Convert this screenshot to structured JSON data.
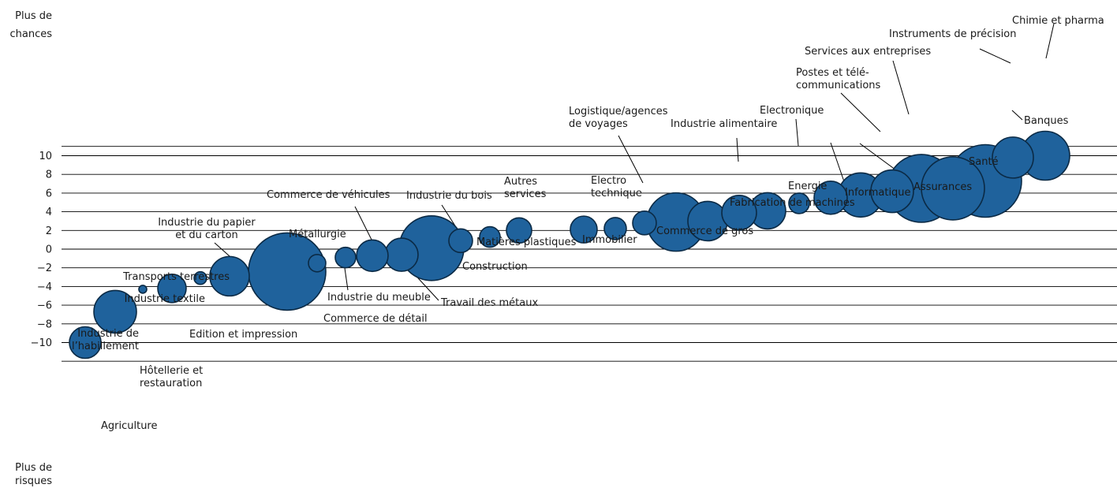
{
  "chart_data": {
    "type": "scatter",
    "title": "",
    "xlabel": "",
    "ylabel": "",
    "y_top_label": [
      "Plus de",
      "chances"
    ],
    "y_bottom_label": [
      "Plus de",
      "risques"
    ],
    "ylim": [
      -12,
      12
    ],
    "yticks": [
      10,
      8,
      6,
      4,
      2,
      0,
      -2,
      -4,
      -6,
      -8,
      -10
    ],
    "grid": true,
    "bubble_color": "#1f629c",
    "series": [
      {
        "name": "",
        "points": [
          {
            "label": "Agriculture",
            "rank": 1,
            "y": -10.0,
            "size": 20
          },
          {
            "label": "Hôtellerie et restauration",
            "rank": 2,
            "y": -6.7,
            "size": 27
          },
          {
            "label": "Industrie de l'habillement",
            "rank": 3,
            "y": -4.3,
            "size": 5
          },
          {
            "label": "Edition et impression",
            "rank": 4,
            "y": -4.2,
            "size": 18
          },
          {
            "label": "Industrie textile",
            "rank": 5,
            "y": -3.1,
            "size": 8
          },
          {
            "label": "Transports terrestres",
            "rank": 6,
            "y": -2.9,
            "size": 25
          },
          {
            "label": "Commerce de détail",
            "rank": 7,
            "y": -2.4,
            "size": 49
          },
          {
            "label": "Métallurgie",
            "rank": 8,
            "y": -1.5,
            "size": 11
          },
          {
            "label": "Industrie du meuble",
            "rank": 9,
            "y": -0.9,
            "size": 13
          },
          {
            "label": "Commerce de véhicules",
            "rank": 10,
            "y": -0.7,
            "size": 20
          },
          {
            "label": "Travail des métaux",
            "rank": 11,
            "y": -0.6,
            "size": 21
          },
          {
            "label": "Construction",
            "rank": 12,
            "y": 0.1,
            "size": 41
          },
          {
            "label": "Industrie du bois",
            "rank": 13,
            "y": 0.9,
            "size": 15
          },
          {
            "label": "Matières plastiques",
            "rank": 14,
            "y": 1.3,
            "size": 13
          },
          {
            "label": "Autres services",
            "rank": 15,
            "y": 2.0,
            "size": 16
          },
          {
            "label": "Immobilier",
            "rank": 16,
            "y": 2.1,
            "size": 17
          },
          {
            "label": "Electro technique",
            "rank": 17,
            "y": 2.2,
            "size": 14
          },
          {
            "label": "Logistique/agences de voyages",
            "rank": 18,
            "y": 2.8,
            "size": 15
          },
          {
            "label": "Commerce de gros",
            "rank": 19,
            "y": 2.9,
            "size": 37
          },
          {
            "label": "Fabrication de machines",
            "rank": 20,
            "y": 3.0,
            "size": 25
          },
          {
            "label": "Industrie alimentaire",
            "rank": 21,
            "y": 3.9,
            "size": 22
          },
          {
            "label": "Energie",
            "rank": 22,
            "y": 4.1,
            "size": 23
          },
          {
            "label": "Electronique",
            "rank": 23,
            "y": 4.9,
            "size": 13
          },
          {
            "label": "Informatique",
            "rank": 24,
            "y": 5.5,
            "size": 21
          },
          {
            "label": "Postes et télé- communications",
            "rank": 25,
            "y": 5.8,
            "size": 28
          },
          {
            "label": "Assurances",
            "rank": 26,
            "y": 6.2,
            "size": 27
          },
          {
            "label": "Services aux entreprises",
            "rank": 27,
            "y": 6.5,
            "size": 43
          },
          {
            "label": "Santé",
            "rank": 28,
            "y": 6.5,
            "size": 40
          },
          {
            "label": "Banques",
            "rank": 29,
            "y": 7.3,
            "size": 46
          },
          {
            "label": "Instruments de précision",
            "rank": 30,
            "y": 9.8,
            "size": 26
          },
          {
            "label": "Chimie et pharma",
            "rank": 31,
            "y": 10.0,
            "size": 31
          }
        ]
      }
    ]
  }
}
